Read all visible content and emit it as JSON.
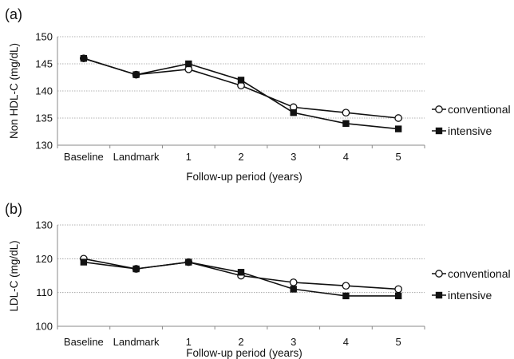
{
  "chart_data": [
    {
      "type": "line",
      "panel_label": "(a)",
      "categories": [
        "Baseline",
        "Landmark",
        "1",
        "2",
        "3",
        "4",
        "5"
      ],
      "xlabel": "Follow-up period (years)",
      "ylabel": "Non HDL-C (mg/dL)",
      "ylim": [
        130,
        150
      ],
      "yticks": [
        "130",
        "135",
        "140",
        "145",
        "150"
      ],
      "grid": true,
      "legend_position": "right",
      "series": [
        {
          "name": "conventional",
          "marker": "open-circle",
          "values": [
            146,
            143,
            144,
            141,
            137,
            136,
            135
          ]
        },
        {
          "name": "intensive",
          "marker": "filled-square",
          "values": [
            146,
            143,
            145,
            142,
            136,
            134,
            133
          ]
        }
      ]
    },
    {
      "type": "line",
      "panel_label": "(b)",
      "categories": [
        "Baseline",
        "Landmark",
        "1",
        "2",
        "3",
        "4",
        "5"
      ],
      "xlabel": "Follow-up period (years)",
      "ylabel": "LDL-C (mg/dL)",
      "ylim": [
        100,
        130
      ],
      "yticks": [
        "100",
        "110",
        "120",
        "130"
      ],
      "grid": true,
      "legend_position": "right",
      "series": [
        {
          "name": "conventional",
          "marker": "open-circle",
          "values": [
            120,
            117,
            119,
            115,
            113,
            112,
            111
          ]
        },
        {
          "name": "intensive",
          "marker": "filled-square",
          "values": [
            119,
            117,
            119,
            116,
            111,
            109,
            109
          ]
        }
      ]
    }
  ]
}
